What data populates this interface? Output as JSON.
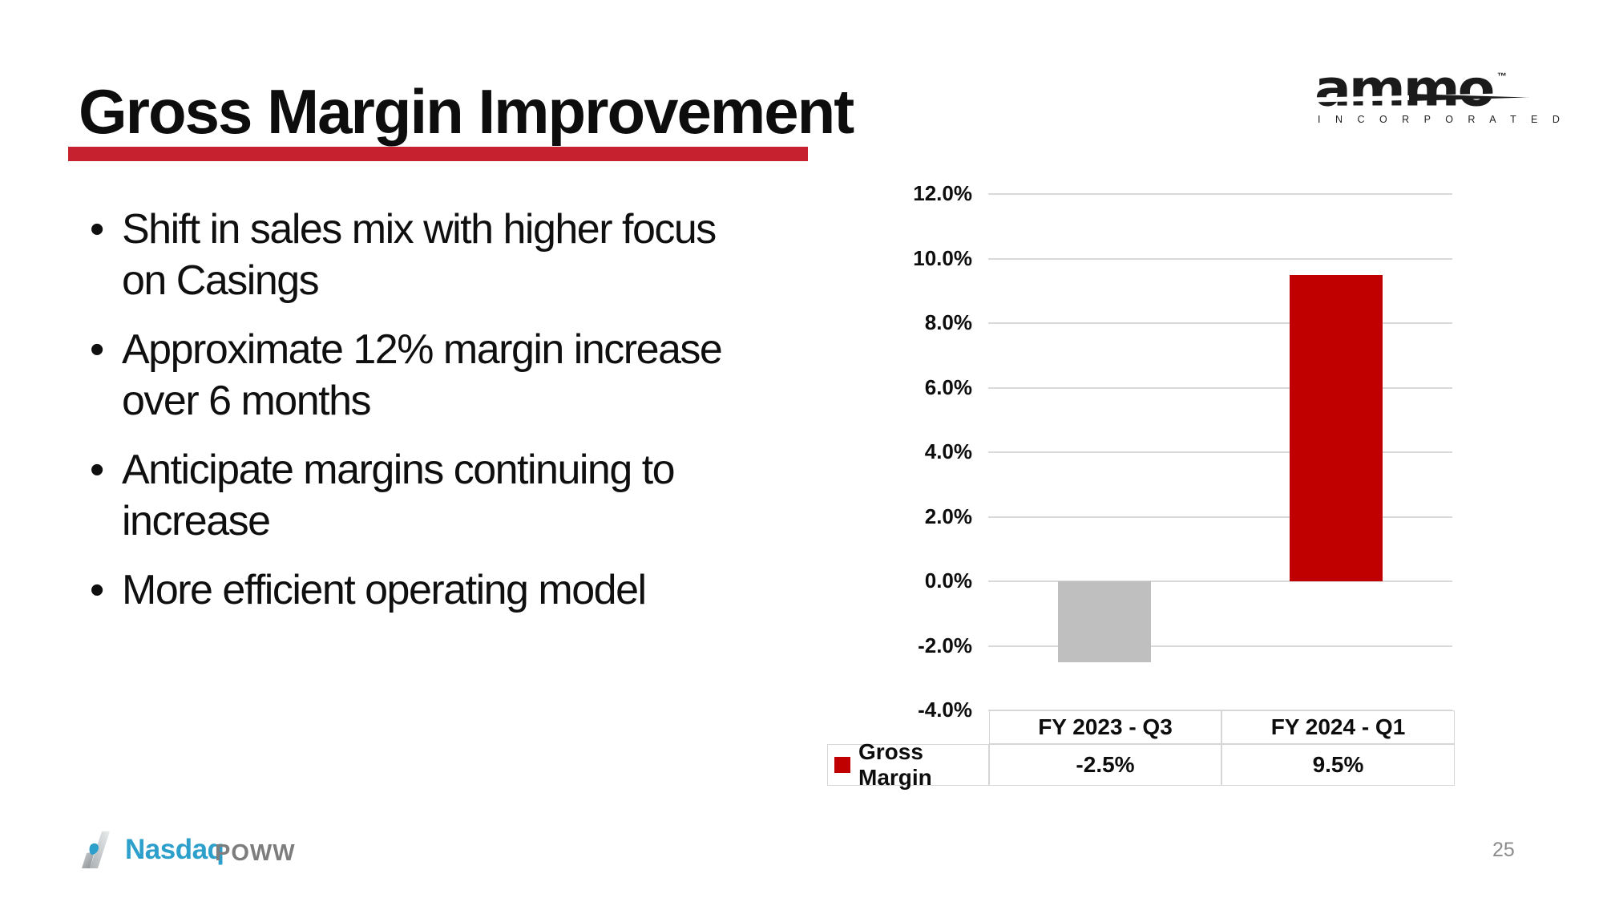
{
  "slide": {
    "title": "Gross Margin Improvement",
    "page_number": "25",
    "bullet_char": "•",
    "accent_red": "#C5212E"
  },
  "logo": {
    "brand": "ammo",
    "tm": "™",
    "sub": "I N C O R P O R A T E D"
  },
  "bullets": [
    {
      "lines": [
        "Shift in sales mix with higher focus",
        "on Casings"
      ]
    },
    {
      "lines": [
        "Approximate 12% margin increase",
        "over 6 months"
      ]
    },
    {
      "lines": [
        "Anticipate margins continuing to",
        "increase"
      ]
    },
    {
      "lines": [
        "More efficient operating model"
      ]
    }
  ],
  "footer": {
    "exchange": "Nasdaq",
    "ticker": "POWW"
  },
  "chart_data": {
    "type": "bar",
    "title": "",
    "categories": [
      "FY 2023 - Q3",
      "FY 2024 - Q1"
    ],
    "series": [
      {
        "name": "Gross Margin",
        "values": [
          -2.5,
          9.5
        ]
      }
    ],
    "value_labels": [
      "-2.5%",
      "9.5%"
    ],
    "ylim": [
      -4,
      12
    ],
    "yticks": [
      {
        "value": 12,
        "label": "12.0%"
      },
      {
        "value": 10,
        "label": "10.0%"
      },
      {
        "value": 8,
        "label": "8.0%"
      },
      {
        "value": 6,
        "label": "6.0%"
      },
      {
        "value": 4,
        "label": "4.0%"
      },
      {
        "value": 2,
        "label": "2.0%"
      },
      {
        "value": 0,
        "label": "0.0%"
      },
      {
        "value": -2,
        "label": "-2.0%"
      },
      {
        "value": -4,
        "label": "-4.0%"
      }
    ],
    "grid": true,
    "legend_position": "table-left",
    "legend_color": "#C00000",
    "bar_colors": [
      "#BFBFBF",
      "#C00000"
    ],
    "bar_width_pct": 20,
    "bar_centers_pct": [
      25,
      75
    ],
    "gridline_color": "#D9D9D9"
  }
}
